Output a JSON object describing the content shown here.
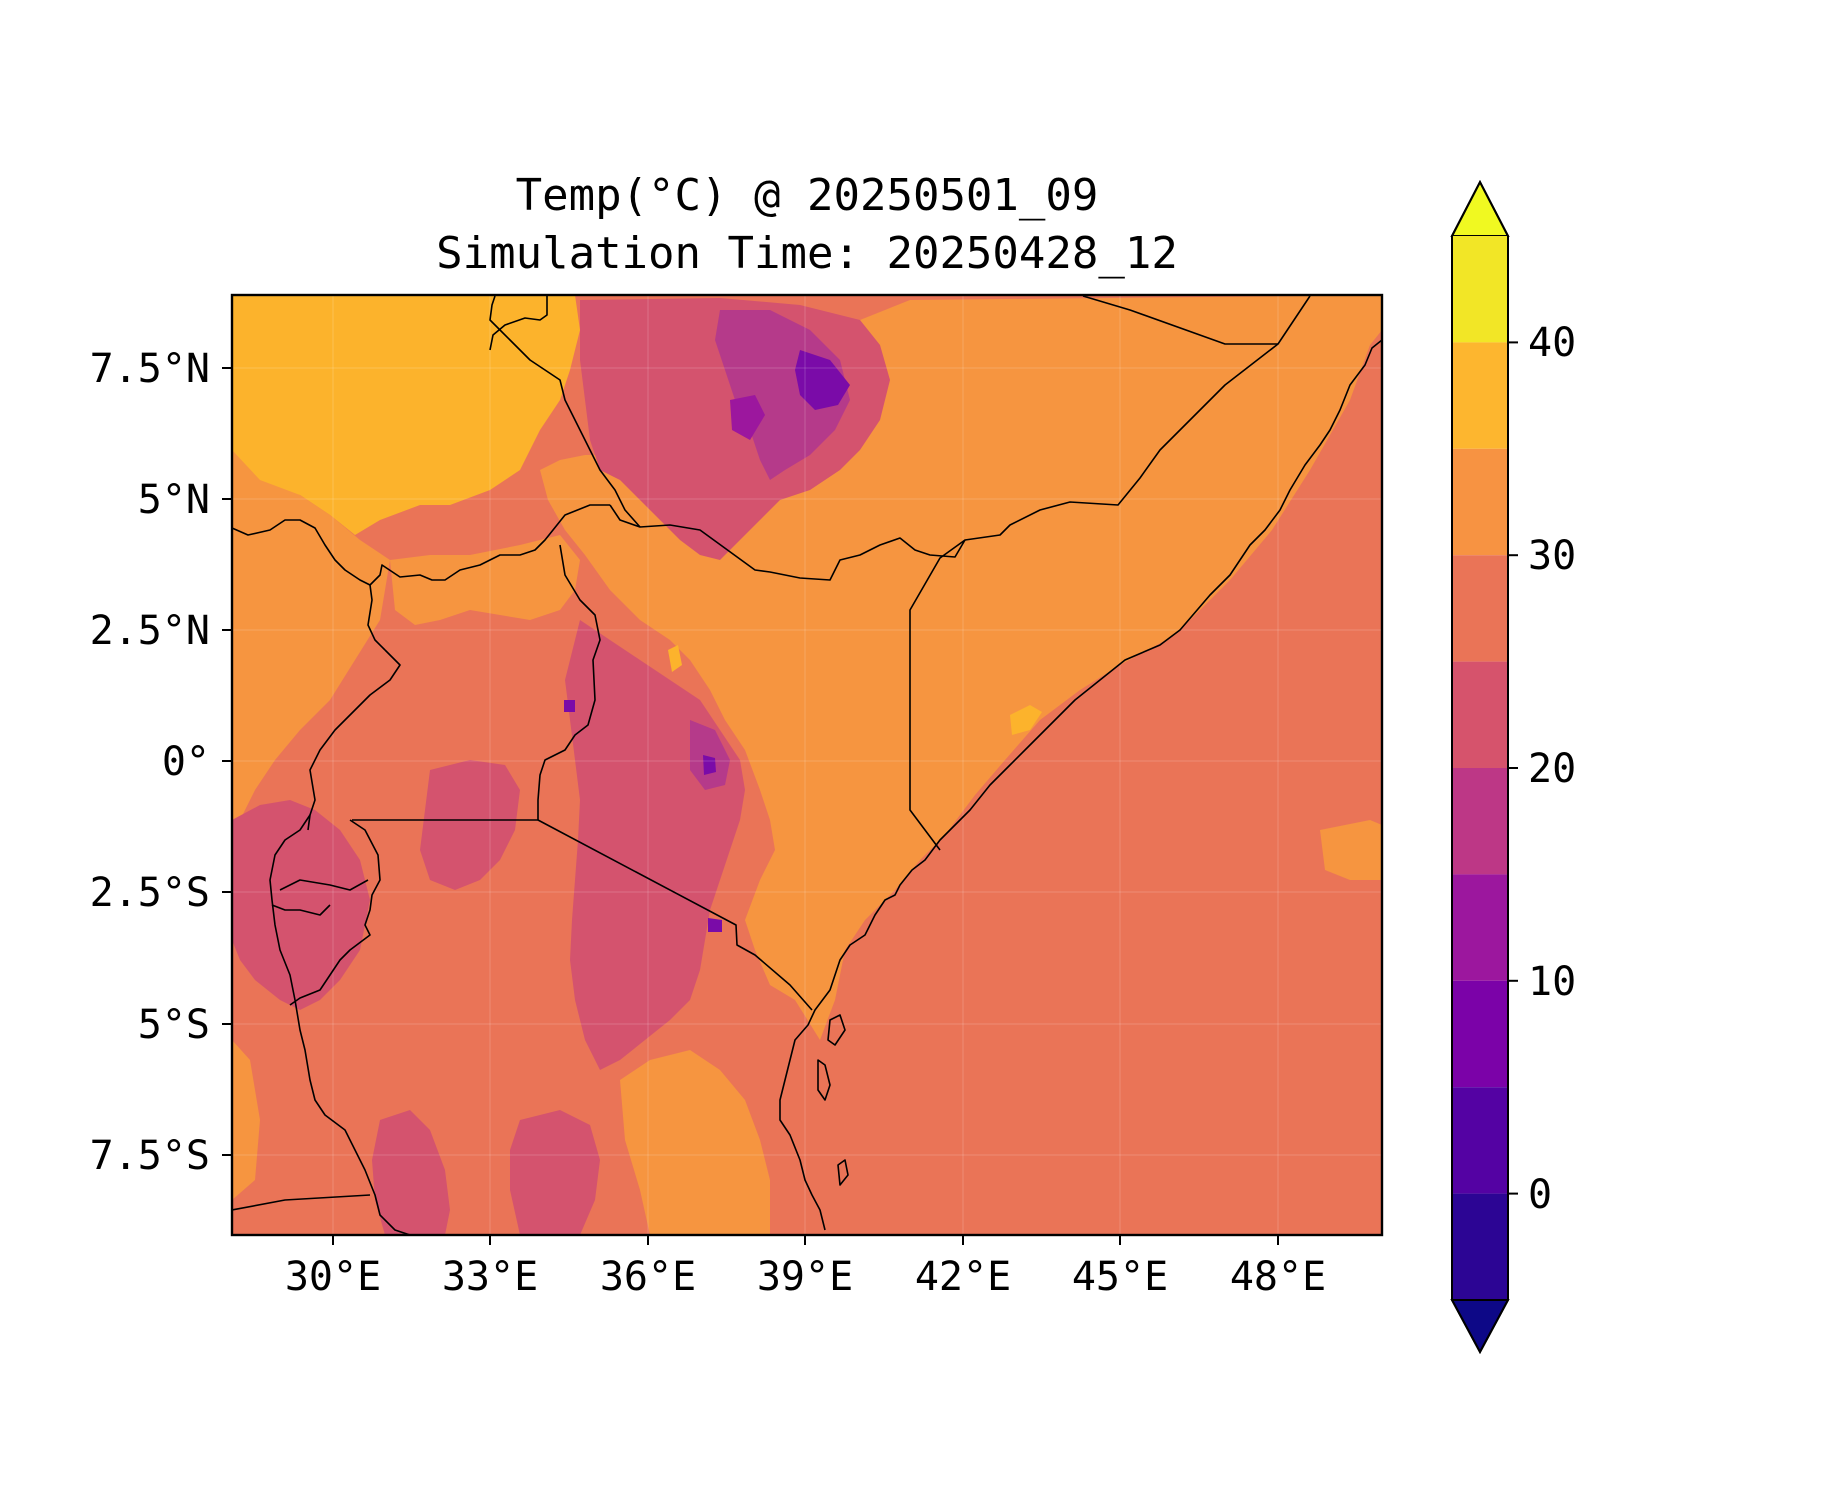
{
  "title": {
    "line1": "Temp(°C) @ 20250501_09",
    "line2": "Simulation Time: 20250428_12"
  },
  "x_ticks": [
    "30°E",
    "33°E",
    "36°E",
    "39°E",
    "42°E",
    "45°E",
    "48°E"
  ],
  "y_ticks": [
    "7.5°N",
    "5°N",
    "2.5°N",
    "0°",
    "2.5°S",
    "5°S",
    "7.5°S"
  ],
  "colorbar": {
    "tick_labels": [
      "40",
      "30",
      "20",
      "10",
      "0"
    ],
    "levels": [
      -5,
      0,
      5,
      10,
      15,
      20,
      25,
      30,
      35,
      40,
      45
    ],
    "colors": [
      "#0d0887",
      "#2c0594",
      "#5402a3",
      "#7b02a8",
      "#9c179e",
      "#bd3786",
      "#d6536c",
      "#ea7457",
      "#f79342",
      "#fdb62f",
      "#f2e626",
      "#f0f921"
    ],
    "extend": "both"
  },
  "map": {
    "lon_range": [
      28.1,
      50.0
    ],
    "lat_range": [
      -9.1,
      8.85
    ],
    "land_colors": {
      "hot_desert": "#fcb32c",
      "lowland": "#f69540",
      "plateau": "#ea7457",
      "highland": "#d4536e",
      "peaks": "#b53a8a",
      "summits": "#7a0ba8",
      "ocean": "#ea7457"
    }
  }
}
